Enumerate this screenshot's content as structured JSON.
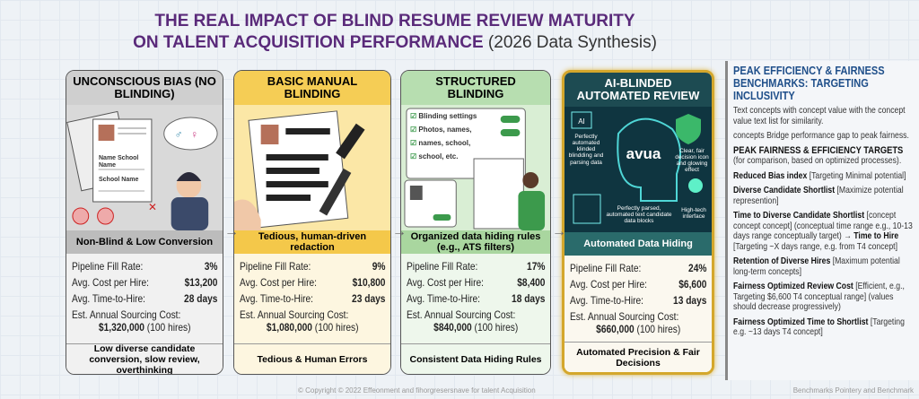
{
  "title": {
    "line1": "THE REAL IMPACT OF BLIND RESUME REVIEW MATURITY",
    "line2": "ON TALENT ACQUISITION PERFORMANCE",
    "subtitle": "(2026 Data Synthesis)"
  },
  "labels": {
    "fill": "Pipeline Fill Rate:",
    "cost": "Avg. Cost per Hire:",
    "time": "Avg. Time-to-Hire:",
    "annual": "Est. Annual Sourcing Cost:"
  },
  "cards": [
    {
      "header": "UNCONSCIOUS BIAS (NO BLINDING)",
      "band": "Non-Blind & Low Conversion",
      "fill": "3%",
      "cost": "$13,200",
      "time": "28 days",
      "annual": "$1,320,000",
      "hires": "(100 hires)",
      "footer": "Low diverse candidate conversion, slow review, overthinking",
      "illustration": {
        "name_label": "Name School Name",
        "school_label": "School Name"
      }
    },
    {
      "header": "BASIC MANUAL BLINDING",
      "band": "Tedious, human-driven redaction",
      "fill": "9%",
      "cost": "$10,800",
      "time": "23 days",
      "annual": "$1,080,000",
      "hires": "(100 hires)",
      "footer": "Tedious & Human Errors"
    },
    {
      "header": "STRUCTURED BLINDING",
      "band": "Organized data hiding rules (e.g., ATS filters)",
      "fill": "17%",
      "cost": "$8,400",
      "time": "18 days",
      "annual": "$840,000",
      "hires": "(100 hires)",
      "footer": "Consistent Data Hiding Rules",
      "illustration": {
        "settings": [
          "Blinding settings",
          "Photos, names,",
          "names, school,",
          "school, etc."
        ]
      }
    },
    {
      "header": "AI-BLINDED AUTOMATED REVIEW",
      "band": "Automated Data Hiding",
      "fill": "24%",
      "cost": "$6,600",
      "time": "13 days",
      "annual": "$660,000",
      "hires": "(100 hires)",
      "footer": "Automated Precision & Fair Decisions",
      "illustration": {
        "ai": "AI",
        "brand": "avua",
        "left_note": "Perfectly automated klinded blindding and parsing data",
        "right_note": "Clear, fair decision icon and glowing effect",
        "bottom_note": "Perfectly parsed, automated text candidate data blocks",
        "bulb_note": "High-tech interface"
      }
    }
  ],
  "panel": {
    "title": "PEAK EFFICIENCY & FAIRNESS",
    "title2": "BENCHMARKS: TARGETING INCLUSIVITY",
    "intro": "Text concepts with  concept value with the concept value text list for similarity.",
    "intro2": "concepts Bridge performance gap to peak fairness.",
    "targets_head": "PEAK FAIRNESS & EFFICIENCY TARGETS",
    "targets_note": "(for comparison, based on optimized processes).",
    "items": [
      {
        "bold": "Reduced Bias index",
        "text": " [Targeting Minimal potential]"
      },
      {
        "bold": "Diverse Candidate Shortlist",
        "text": " [Maximize potential represention]"
      },
      {
        "bold": "Time to Diverse Candidate Shortlist",
        "text": " [concept concept concept] (conceptual time range e.g., 10-13 days range conceptually target) → ",
        "bold2": "Time to Hire",
        "text2": " [Targeting ~X days range, e.g. from T4 concept]"
      },
      {
        "bold": "Retention of Diverse Hires",
        "text": " [Maximum potential long-term concepts]"
      },
      {
        "bold": "Fairness Optimized Review Cost",
        "text": " [Efficient, e.g., Targeting $6,600 T4 conceptual range] (values should decrease progressively)"
      },
      {
        "bold": "Fairness Optimized Time to Shortlist",
        "text": " [Targeting e.g. ~13 days T4 concept]"
      }
    ]
  },
  "footer": {
    "copyright": "© Copyright © 2022 Effeonment and fihorgresersnave for talent Acquisition",
    "right": "Benchmarks Pointery and Benchmark"
  },
  "colors": {
    "title": "#5a2a7a",
    "card1": "#cfcfcf",
    "card2": "#f5cd55",
    "card3": "#b7deb0",
    "card4": "#1d4b52",
    "gold": "#d4a72c",
    "panel_title": "#1f4f8a"
  }
}
